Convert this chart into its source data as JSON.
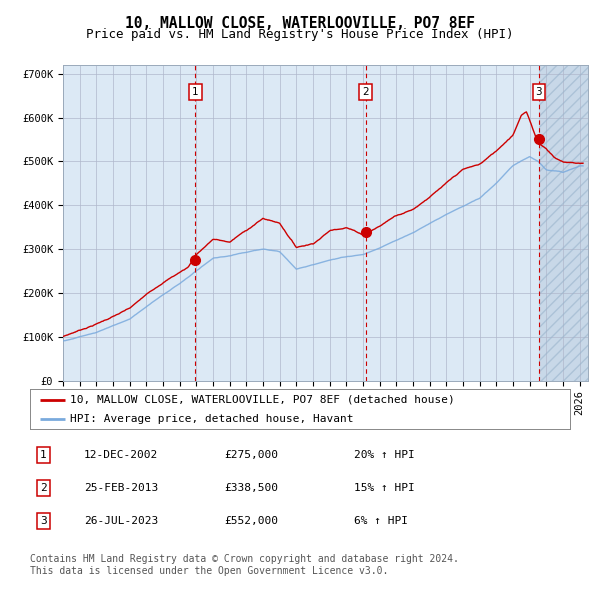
{
  "title": "10, MALLOW CLOSE, WATERLOOVILLE, PO7 8EF",
  "subtitle": "Price paid vs. HM Land Registry's House Price Index (HPI)",
  "ylim": [
    0,
    720000
  ],
  "xlim_start": 1995.0,
  "xlim_end": 2026.5,
  "yticks": [
    0,
    100000,
    200000,
    300000,
    400000,
    500000,
    600000,
    700000
  ],
  "ytick_labels": [
    "£0",
    "£100K",
    "£200K",
    "£300K",
    "£400K",
    "£500K",
    "£600K",
    "£700K"
  ],
  "background_color": "#ffffff",
  "plot_bg_color": "#dce9f5",
  "hatch_bg_color": "#c8d8e8",
  "grid_color": "#b0b8cc",
  "red_line_color": "#cc0000",
  "blue_line_color": "#7aaadd",
  "sale_marker_color": "#cc0000",
  "vline_color": "#cc0000",
  "legend_label_red": "10, MALLOW CLOSE, WATERLOOVILLE, PO7 8EF (detached house)",
  "legend_label_blue": "HPI: Average price, detached house, Havant",
  "sales": [
    {
      "num": 1,
      "date_year": 2002.95,
      "price": 275000
    },
    {
      "num": 2,
      "date_year": 2013.15,
      "price": 338500
    },
    {
      "num": 3,
      "date_year": 2023.55,
      "price": 552000
    }
  ],
  "table_sales": [
    {
      "num": "1",
      "date": "12-DEC-2002",
      "price": "£275,000",
      "pct": "20% ↑ HPI"
    },
    {
      "num": "2",
      "date": "25-FEB-2013",
      "price": "£338,500",
      "pct": "15% ↑ HPI"
    },
    {
      "num": "3",
      "date": "26-JUL-2023",
      "price": "£552,000",
      "pct": "6% ↑ HPI"
    }
  ],
  "footer1": "Contains HM Land Registry data © Crown copyright and database right 2024.",
  "footer2": "This data is licensed under the Open Government Licence v3.0.",
  "title_fontsize": 10.5,
  "subtitle_fontsize": 9,
  "tick_fontsize": 7.5,
  "legend_fontsize": 8,
  "table_fontsize": 8,
  "footer_fontsize": 7
}
